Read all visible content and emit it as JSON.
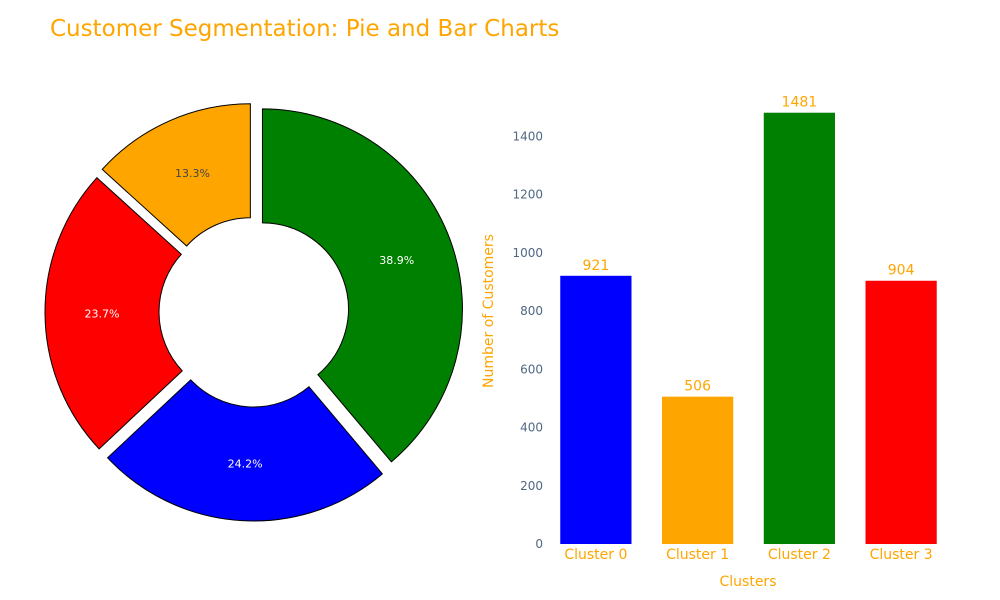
{
  "title": "Customer Segmentation: Pie and Bar Charts",
  "colors": {
    "accent": "#ffa500",
    "tick_text": "#506784",
    "series": [
      "#0000ff",
      "#ffa500",
      "#008000",
      "#ff0000"
    ],
    "pie_label_text": [
      "#ffffff",
      "#444444",
      "#ffffff",
      "#ffffff"
    ]
  },
  "chart_data": [
    {
      "type": "pie",
      "hole": true,
      "categories": [
        "Cluster 0",
        "Cluster 1",
        "Cluster 2",
        "Cluster 3"
      ],
      "values": [
        921,
        506,
        1481,
        904
      ],
      "labels": [
        "24.2%",
        "13.3%",
        "38.9%",
        "23.7%"
      ],
      "pulled": true
    },
    {
      "type": "bar",
      "categories": [
        "Cluster 0",
        "Cluster 1",
        "Cluster 2",
        "Cluster 3"
      ],
      "values": [
        921,
        506,
        1481,
        904
      ],
      "xlabel": "Clusters",
      "ylabel": "Number of Customers",
      "ylim": [
        0,
        1559
      ],
      "yticks": [
        0,
        200,
        400,
        600,
        800,
        1000,
        1200,
        1400
      ],
      "grid": false
    }
  ]
}
